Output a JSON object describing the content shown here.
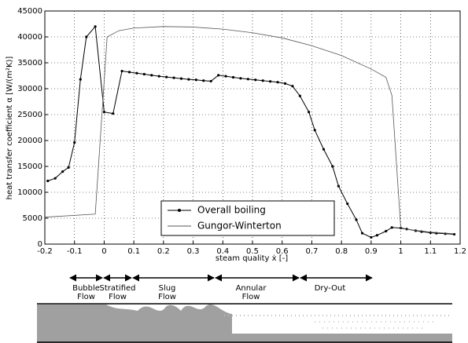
{
  "chart_data": {
    "type": "line",
    "xlabel": "steam quality ẋ [-]",
    "ylabel": "heat transfer coefficient α [W/(m²K)]",
    "xlim": [
      -0.2,
      1.2
    ],
    "xticks": [
      -0.2,
      -0.1,
      0,
      0.1,
      0.2,
      0.3,
      0.4,
      0.5,
      0.6,
      0.7,
      0.8,
      0.9,
      1,
      1.1,
      1.2
    ],
    "ylim": [
      0,
      45000
    ],
    "yticks": [
      0,
      5000,
      10000,
      15000,
      20000,
      25000,
      30000,
      35000,
      40000,
      45000
    ],
    "grid": true,
    "legend": "lower center",
    "series": [
      {
        "name": "Overall boiling",
        "color": "#000000",
        "marker": true,
        "x": [
          -0.19,
          -0.165,
          -0.14,
          -0.12,
          -0.1,
          -0.08,
          -0.06,
          -0.03,
          0.0,
          0.03,
          0.06,
          0.085,
          0.11,
          0.135,
          0.16,
          0.185,
          0.21,
          0.235,
          0.26,
          0.285,
          0.31,
          0.335,
          0.36,
          0.385,
          0.41,
          0.435,
          0.46,
          0.485,
          0.51,
          0.535,
          0.56,
          0.585,
          0.61,
          0.635,
          0.66,
          0.69,
          0.71,
          0.74,
          0.77,
          0.79,
          0.82,
          0.85,
          0.87,
          0.9,
          0.92,
          0.95,
          0.97,
          1.0,
          1.02,
          1.05,
          1.07,
          1.1,
          1.12,
          1.15,
          1.18
        ],
        "values": [
          12200,
          12700,
          14000,
          14800,
          19600,
          31800,
          40000,
          42000,
          25500,
          25200,
          33400,
          33200,
          33000,
          32800,
          32600,
          32400,
          32250,
          32100,
          31950,
          31800,
          31700,
          31550,
          31450,
          32600,
          32400,
          32200,
          32000,
          31850,
          31700,
          31550,
          31400,
          31250,
          31000,
          30500,
          28600,
          25500,
          22000,
          18300,
          15000,
          11200,
          7800,
          4700,
          2100,
          1300,
          1700,
          2500,
          3200,
          3100,
          2900,
          2600,
          2400,
          2200,
          2100,
          2000,
          1900
        ]
      },
      {
        "name": "Gungor-Winterton",
        "color": "#555555",
        "marker": false,
        "x": [
          -0.2,
          -0.03,
          0.01,
          0.05,
          0.1,
          0.2,
          0.3,
          0.4,
          0.5,
          0.6,
          0.7,
          0.8,
          0.9,
          0.95,
          0.97,
          1.0,
          1.1,
          1.18
        ],
        "values": [
          5200,
          5800,
          40000,
          41200,
          41700,
          42000,
          41900,
          41500,
          40800,
          39800,
          38300,
          36400,
          33800,
          32200,
          28700,
          3000,
          2300,
          2000
        ]
      }
    ]
  },
  "flow_regimes": [
    {
      "label": [
        "Bubble",
        "Flow"
      ]
    },
    {
      "label": [
        "Stratified",
        "Flow"
      ]
    },
    {
      "label": [
        "Slug",
        "Flow"
      ]
    },
    {
      "label": [
        "Annular",
        "Flow"
      ]
    },
    {
      "label": [
        "Dry-Out"
      ]
    }
  ]
}
